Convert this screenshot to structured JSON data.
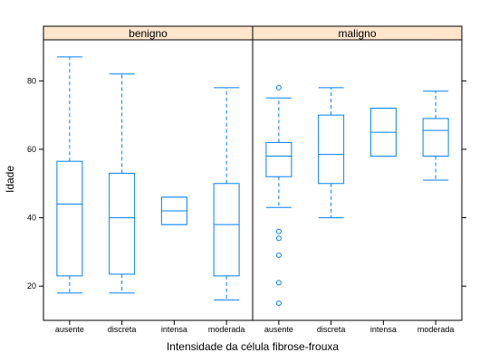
{
  "chart_data": {
    "type": "boxplot",
    "xlabel": "Intensidade da célula fibrose-frouxa",
    "ylabel": "Idade",
    "ylim": [
      10,
      92
    ],
    "yticks": [
      20,
      40,
      60,
      80
    ],
    "categories": [
      "ausente",
      "discreta",
      "intensa",
      "moderada"
    ],
    "panel_color": "#ffe5cc",
    "box_color": "#0080ff",
    "panels": [
      {
        "name": "benigno",
        "boxes": [
          {
            "category": "ausente",
            "whisker_low": 18,
            "q1": 23,
            "median": 44,
            "q3": 56.5,
            "whisker_high": 87,
            "outliers": []
          },
          {
            "category": "discreta",
            "whisker_low": 18,
            "q1": 23.5,
            "median": 40,
            "q3": 53,
            "whisker_high": 82,
            "outliers": []
          },
          {
            "category": "intensa",
            "whisker_low": 38,
            "q1": 38,
            "median": 42,
            "q3": 46,
            "whisker_high": 46,
            "outliers": []
          },
          {
            "category": "moderada",
            "whisker_low": 16,
            "q1": 23,
            "median": 38,
            "q3": 50,
            "whisker_high": 78,
            "outliers": []
          }
        ]
      },
      {
        "name": "maligno",
        "boxes": [
          {
            "category": "ausente",
            "whisker_low": 43,
            "q1": 52,
            "median": 58,
            "q3": 62,
            "whisker_high": 75,
            "outliers": [
              78,
              36,
              34,
              29,
              21,
              15
            ]
          },
          {
            "category": "discreta",
            "whisker_low": 40,
            "q1": 50,
            "median": 58.5,
            "q3": 70,
            "whisker_high": 78,
            "outliers": []
          },
          {
            "category": "intensa",
            "whisker_low": 58,
            "q1": 58,
            "median": 65,
            "q3": 72,
            "whisker_high": 72,
            "outliers": []
          },
          {
            "category": "moderada",
            "whisker_low": 51,
            "q1": 58,
            "median": 65.5,
            "q3": 69,
            "whisker_high": 77,
            "outliers": []
          }
        ]
      }
    ]
  }
}
